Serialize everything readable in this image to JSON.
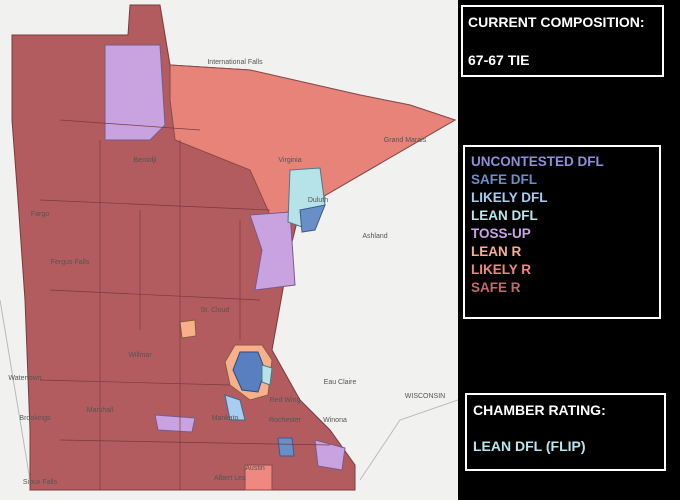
{
  "composition": {
    "title": "CURRENT COMPOSITION:",
    "value": "67-67 TIE"
  },
  "legend": [
    {
      "label": "UNCONTESTED DFL",
      "color": "#8f8fd8"
    },
    {
      "label": "SAFE DFL",
      "color": "#6a8fc8"
    },
    {
      "label": "LIKELY DFL",
      "color": "#a9cdf0"
    },
    {
      "label": "LEAN DFL",
      "color": "#b8e6ea"
    },
    {
      "label": "TOSS-UP",
      "color": "#c8a4e4"
    },
    {
      "label": "LEAN R",
      "color": "#f6b08c"
    },
    {
      "label": "LIKELY R",
      "color": "#ee8880"
    },
    {
      "label": "SAFE R",
      "color": "#c46a6a"
    }
  ],
  "rating": {
    "title": "CHAMBER RATING:",
    "value": "LEAN DFL (FLIP)"
  },
  "map_labels": [
    "International Falls",
    "Bemidji",
    "Grand Marais",
    "Virginia",
    "Duluth",
    "Fergus Falls",
    "St. Cloud",
    "Willmar",
    "Marshall",
    "Mankato",
    "Rochester",
    "Winona",
    "Austin",
    "Albert Lea",
    "Red Wing",
    "Eau Claire",
    "Ashland",
    "WISCONSIN",
    "Brookings",
    "Sioux Falls",
    "Watertown",
    "Fargo"
  ]
}
